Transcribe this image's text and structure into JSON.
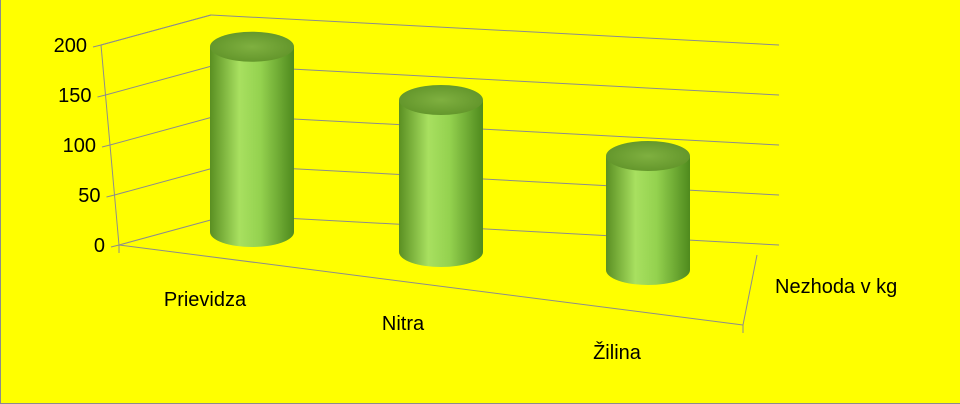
{
  "chart_data": {
    "type": "bar",
    "style": "3d-cylinder",
    "title": "",
    "xlabel": "",
    "ylabel": "",
    "categories": [
      "Prievidza",
      "Nitra",
      "Žilina"
    ],
    "series": [
      {
        "name": "Nezhoda v kg",
        "values": [
          195,
          160,
          120
        ]
      }
    ],
    "ylim": [
      0,
      200
    ],
    "yticks": [
      0,
      50,
      100,
      150,
      200
    ],
    "grid": true,
    "legend": "none",
    "colors": {
      "background": "#ffff00",
      "bar": "#8fd14f",
      "gridline": "#8c8c8c"
    }
  }
}
